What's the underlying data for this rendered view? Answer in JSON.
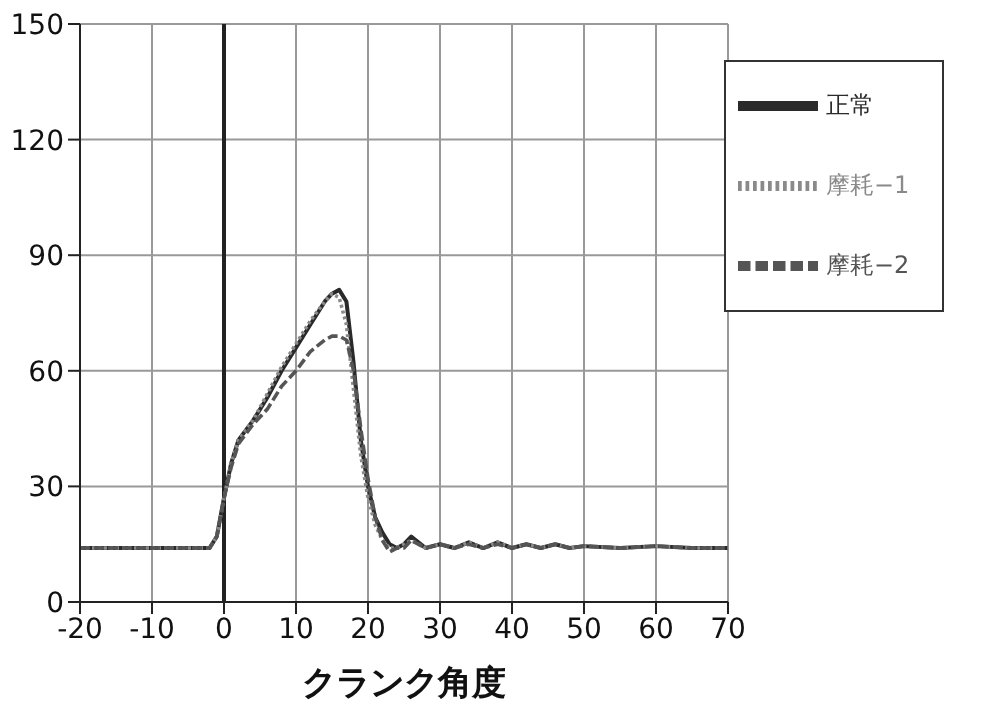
{
  "chart_data": {
    "type": "line",
    "xlabel": "クランク角度",
    "x": [
      -20,
      -15,
      -10,
      -5,
      -2,
      -1,
      0,
      1,
      2,
      4,
      6,
      8,
      10,
      12,
      14,
      15,
      16,
      17,
      18,
      19,
      20,
      21,
      22,
      23,
      24,
      25,
      26,
      28,
      30,
      32,
      34,
      36,
      38,
      40,
      42,
      44,
      46,
      48,
      50,
      55,
      60,
      65,
      70
    ],
    "series": [
      {
        "name": "正常",
        "color": "#2a2a2a",
        "line_style": "solid",
        "values": [
          14,
          14,
          14,
          14,
          14,
          17,
          27,
          36,
          42,
          47,
          53,
          60,
          66,
          72,
          78,
          80,
          81,
          78,
          62,
          42,
          30,
          22,
          18,
          15,
          14,
          15,
          17,
          14,
          15,
          14,
          15.5,
          14,
          15.5,
          14,
          15,
          14,
          15,
          14,
          14.5,
          14,
          14.5,
          14,
          14
        ]
      },
      {
        "name": "摩耗−1",
        "color": "#8a8a8a",
        "line_style": "dotted",
        "values": [
          14,
          14,
          14,
          14,
          14,
          17,
          27,
          36,
          42,
          47,
          54,
          61,
          67,
          73,
          78,
          80,
          79,
          72,
          55,
          38,
          27,
          20,
          16,
          14,
          14,
          15,
          16,
          14,
          15,
          14,
          15.5,
          14,
          15.5,
          14,
          15,
          14,
          15,
          14,
          14.5,
          14,
          14.5,
          14,
          14
        ]
      },
      {
        "name": "摩耗−2",
        "color": "#555555",
        "line_style": "dashed",
        "values": [
          14,
          14,
          14,
          14,
          14,
          17,
          27,
          35,
          41,
          46,
          50,
          56,
          60,
          65,
          68,
          69,
          69,
          68,
          60,
          45,
          32,
          22,
          16,
          13,
          14,
          14,
          16,
          14,
          15,
          14,
          15,
          14,
          15,
          14,
          15,
          14,
          15,
          14,
          14.5,
          14,
          14.5,
          14,
          14
        ]
      }
    ],
    "xlim": [
      -20,
      70
    ],
    "xticks": [
      -20,
      -10,
      0,
      10,
      20,
      30,
      40,
      50,
      60,
      70
    ],
    "ylim": [
      0,
      150
    ],
    "yticks": [
      0,
      30,
      60,
      90,
      120,
      150
    ],
    "ref_lines": [
      {
        "axis": "x",
        "value": 0,
        "color": "#222222"
      }
    ],
    "grid": true,
    "legend": "top right"
  }
}
